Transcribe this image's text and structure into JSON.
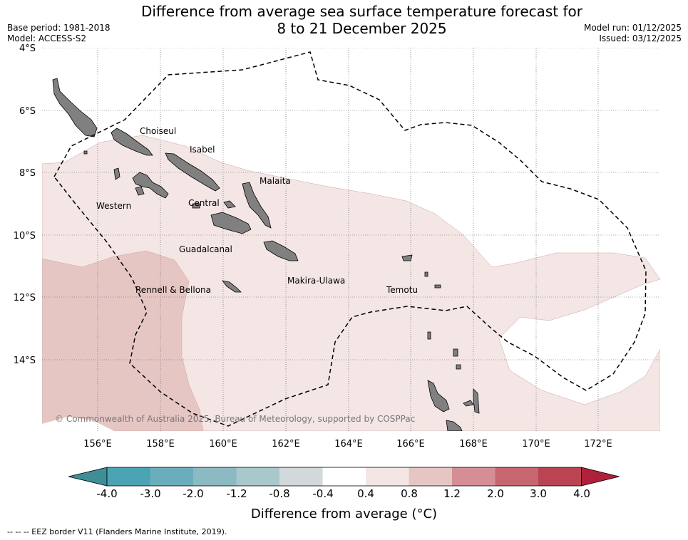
{
  "header": {
    "title_line1": "Difference from average sea surface temperature forecast for",
    "title_line2": "8 to 21 December 2025",
    "base_period": "Base period: 1981-2018",
    "model": "Model: ACCESS-S2",
    "model_run": "Model run: 01/12/2025",
    "issued": "Issued: 03/12/2025"
  },
  "map": {
    "lat_labels": [
      "4°S",
      "6°S",
      "8°S",
      "10°S",
      "12°S",
      "14°S"
    ],
    "lon_labels": [
      "156°E",
      "158°E",
      "160°E",
      "162°E",
      "164°E",
      "166°E",
      "168°E",
      "170°E",
      "172°E"
    ],
    "provinces": [
      "Choiseul",
      "Isabel",
      "Malaita",
      "Western",
      "Central",
      "Guadalcanal",
      "Makira-Ulawa",
      "Rennell & Bellona",
      "Temotu"
    ],
    "copyright": "© Commonwealth of Australia 2025, Bureau of Meteorology, supported by COSPPac"
  },
  "colorbar": {
    "tick_labels": [
      "-4.0",
      "-3.0",
      "-2.0",
      "-1.2",
      "-0.8",
      "-0.4",
      "0.4",
      "0.8",
      "1.2",
      "2.0",
      "3.0",
      "4.0"
    ],
    "colors": [
      "#3f8e97",
      "#4ba4b4",
      "#6aaebd",
      "#8bbac3",
      "#a8c8cb",
      "#d2d9db",
      "#ffffff",
      "#f4e6e5",
      "#e6c6c3",
      "#d58e95",
      "#c86670",
      "#bb4453",
      "#b0203b"
    ],
    "title": "Difference from average (°C)"
  },
  "legend": {
    "eez": "--  --  -- EEZ border V11 (Flanders Marine Institute, 2019)."
  }
}
